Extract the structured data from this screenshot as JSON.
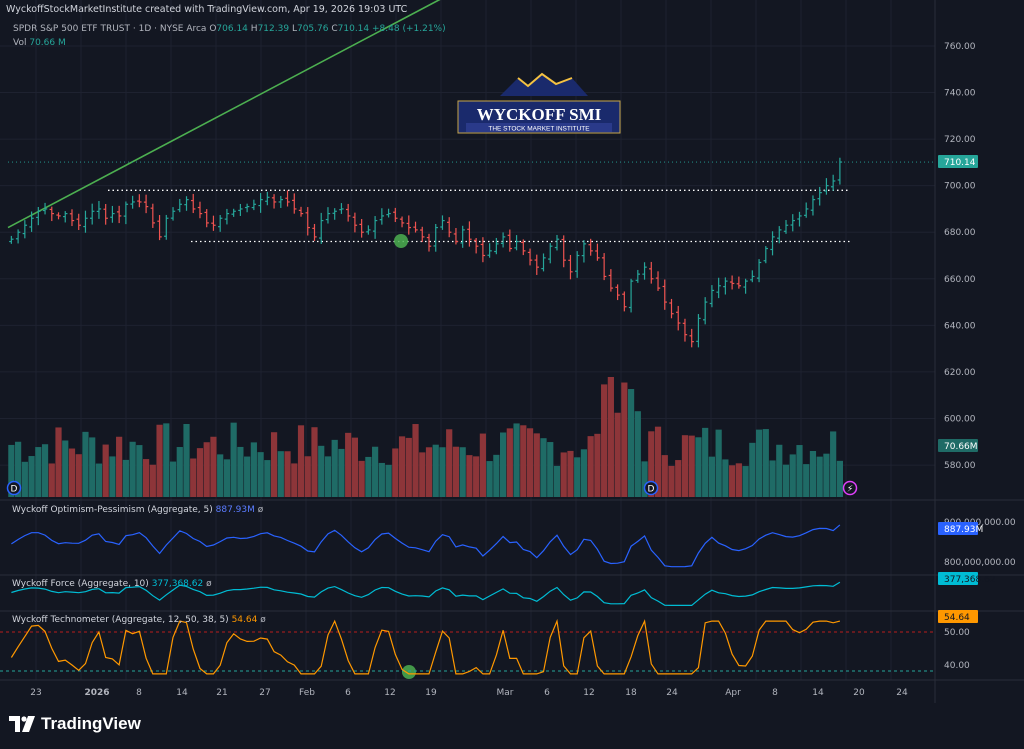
{
  "header": {
    "attribution": "WyckoffStockMarketInstitute created with TradingView.com, Apr 19, 2026 19:03 UTC",
    "symbol": "SPDR S&P 500 ETF TRUST · 1D · NYSE Arca",
    "o_label": "O",
    "o": "706.14",
    "h_label": "H",
    "h": "712.39",
    "l_label": "L",
    "l": "705.76",
    "c_label": "C",
    "c": "710.14",
    "change": "+8.48 (+1.21%)",
    "vol_label": "Vol",
    "vol": "70.66 M"
  },
  "logo": {
    "title": "WYCKOFF SMI",
    "subtitle": "THE STOCK MARKET INSTITUTE"
  },
  "branding": {
    "name": "TradingView"
  },
  "colors": {
    "up": "#26a69a",
    "down": "#ef5350",
    "vol_up": "#1f6b66",
    "vol_down": "#8d3539",
    "trendline": "#4caf50",
    "optimism": "#2962ff",
    "force": "#00bcd4",
    "technometer": "#ff9800",
    "background": "#131722",
    "grid": "#1e2230"
  },
  "chart_data": [
    {
      "type": "candlestick",
      "name": "SPDR S&P 500 ETF TRUST",
      "ylim": [
        565,
        772
      ],
      "y_ticks": [
        "760.00",
        "740.00",
        "720.00",
        "700.00",
        "680.00",
        "660.00",
        "640.00",
        "620.00",
        "600.00",
        "580.00"
      ],
      "last_price_label": "710.14",
      "close": [
        677,
        680,
        683,
        686,
        689,
        690,
        688,
        687,
        688,
        685,
        683,
        686,
        689,
        690,
        686,
        688,
        687,
        692,
        693,
        693,
        691,
        684,
        678,
        686,
        689,
        692,
        694,
        690,
        688,
        684,
        683,
        686,
        688,
        689,
        690,
        691,
        692,
        694,
        695,
        693,
        694,
        693,
        690,
        688,
        682,
        678,
        685,
        688,
        689,
        690,
        687,
        683,
        680,
        681,
        685,
        687,
        688,
        686,
        684,
        682,
        681,
        678,
        674,
        682,
        685,
        680,
        676,
        681,
        677,
        674,
        670,
        672,
        675,
        678,
        673,
        676,
        672,
        668,
        665,
        669,
        674,
        677,
        668,
        663,
        670,
        675,
        672,
        669,
        661,
        656,
        653,
        648,
        659,
        662,
        665,
        660,
        656,
        650,
        645,
        641,
        636,
        633,
        643,
        650,
        655,
        657,
        659,
        658,
        657,
        659,
        661,
        667,
        673,
        678,
        681,
        683,
        685,
        687,
        690,
        694,
        697,
        700,
        702,
        710.14
      ],
      "structure_levels": [
        {
          "label": "resistance",
          "value": 698
        },
        {
          "label": "support",
          "value": 676
        }
      ],
      "trendline": {
        "from": 682,
        "to": 780
      },
      "volume_label": "70.66M"
    },
    {
      "type": "line",
      "name": "Wyckoff Optimism-Pessimism (Aggregate, 5)",
      "value_label": "887.93M",
      "last_value_label": "887.93M",
      "y_ticks": [
        "900,000,000.00",
        "800,000,000.00"
      ]
    },
    {
      "type": "line",
      "name": "Wyckoff Force (Aggregate, 10)",
      "value_label": "377,368.62",
      "last_value_label": "377,368.62"
    },
    {
      "type": "line",
      "name": "Wyckoff Technometer (Aggregate, 12, 50, 38, 5)",
      "value_label": "54.64",
      "last_value_label": "54.64",
      "y_ticks": [
        "50.00",
        "40.00"
      ]
    }
  ],
  "indicators": {
    "op_title": "Wyckoff Optimism-Pessimism (Aggregate, 5)",
    "op_value": "887.93M",
    "force_title": "Wyckoff Force (Aggregate, 10)",
    "force_value": "377,368.62",
    "tech_title": "Wyckoff Technometer (Aggregate, 12, 50, 38, 5)",
    "tech_value": "54.64"
  },
  "x_axis": [
    {
      "label": "23",
      "bold": false
    },
    {
      "label": "2026",
      "bold": true
    },
    {
      "label": "8",
      "bold": false
    },
    {
      "label": "14",
      "bold": false
    },
    {
      "label": "21",
      "bold": false
    },
    {
      "label": "27",
      "bold": false
    },
    {
      "label": "Feb",
      "bold": false
    },
    {
      "label": "6",
      "bold": false
    },
    {
      "label": "12",
      "bold": false
    },
    {
      "label": "19",
      "bold": false
    },
    {
      "label": "Mar",
      "bold": false
    },
    {
      "label": "6",
      "bold": false
    },
    {
      "label": "12",
      "bold": false
    },
    {
      "label": "18",
      "bold": false
    },
    {
      "label": "24",
      "bold": false
    },
    {
      "label": "Apr",
      "bold": false
    },
    {
      "label": "8",
      "bold": false
    },
    {
      "label": "14",
      "bold": false
    },
    {
      "label": "20",
      "bold": false
    },
    {
      "label": "24",
      "bold": false
    }
  ]
}
